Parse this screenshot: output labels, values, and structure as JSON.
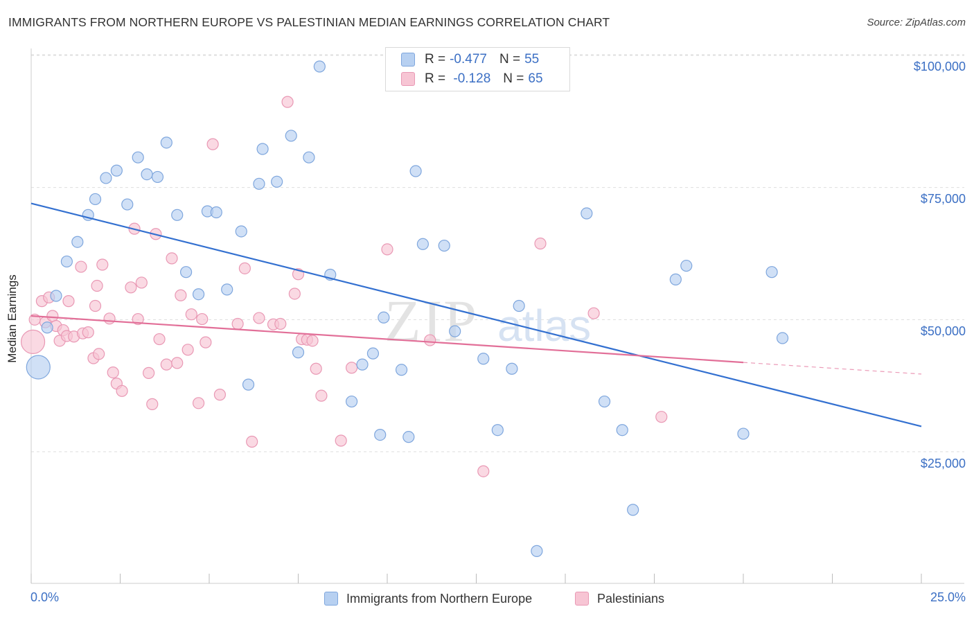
{
  "title": "IMMIGRANTS FROM NORTHERN EUROPE VS PALESTINIAN MEDIAN EARNINGS CORRELATION CHART",
  "source": "Source: ZipAtlas.com",
  "watermark": {
    "zip": "ZIP",
    "atlas": "atlas"
  },
  "stats": [
    {
      "r_label": "R =",
      "r_value": "-0.477",
      "n_label": "N =",
      "n_value": "55"
    },
    {
      "r_label": "R =",
      "r_value": " -0.128",
      "n_label": "N =",
      "n_value": "65"
    }
  ],
  "colors": {
    "blue_fill": "#b7d0f1",
    "blue_stroke": "#7ea6dd",
    "blue_line": "#3370d0",
    "pink_fill": "#f7c5d4",
    "pink_stroke": "#e998b4",
    "pink_line": "#e26f98",
    "tick_text": "#3b6fc4",
    "grid": "#dddddd"
  },
  "chart_data": {
    "type": "scatter",
    "title": "IMMIGRANTS FROM NORTHERN EUROPE VS PALESTINIAN MEDIAN EARNINGS CORRELATION CHART",
    "xlabel": "",
    "ylabel": "Median Earnings",
    "xlim": [
      0,
      25
    ],
    "ylim": [
      0,
      105000
    ],
    "x_tick_labels": [
      "0.0%",
      "25.0%"
    ],
    "y_ticks": [
      25000,
      50000,
      75000,
      100000
    ],
    "y_tick_labels": [
      "$25,000",
      "$50,000",
      "$75,000",
      "$100,000"
    ],
    "grid": true,
    "legend_position": "bottom",
    "series": [
      {
        "name": "Immigrants from Northern Europe",
        "color": "blue",
        "trend": {
          "x": [
            0,
            25
          ],
          "y": [
            72000,
            29800
          ]
        },
        "points": [
          [
            0.2,
            41000,
            "big"
          ],
          [
            0.45,
            48500
          ],
          [
            0.7,
            54500
          ],
          [
            1.0,
            61000
          ],
          [
            1.3,
            64700
          ],
          [
            1.6,
            69800
          ],
          [
            1.8,
            72800
          ],
          [
            2.1,
            76800
          ],
          [
            2.4,
            78200
          ],
          [
            2.7,
            71800
          ],
          [
            3.0,
            80700
          ],
          [
            3.25,
            77500
          ],
          [
            3.55,
            77000
          ],
          [
            3.8,
            83500
          ],
          [
            4.1,
            69800
          ],
          [
            4.35,
            59000
          ],
          [
            4.7,
            54800
          ],
          [
            4.95,
            70500
          ],
          [
            5.2,
            70300
          ],
          [
            5.5,
            55700
          ],
          [
            5.9,
            66700
          ],
          [
            6.1,
            37700
          ],
          [
            6.4,
            75700
          ],
          [
            6.5,
            82300
          ],
          [
            6.9,
            76100
          ],
          [
            7.3,
            84800
          ],
          [
            7.5,
            43800
          ],
          [
            7.8,
            80700
          ],
          [
            8.1,
            97900
          ],
          [
            8.4,
            58500
          ],
          [
            9.0,
            34500
          ],
          [
            9.3,
            41500
          ],
          [
            9.6,
            43600
          ],
          [
            9.8,
            28200
          ],
          [
            9.9,
            50400
          ],
          [
            10.4,
            40500
          ],
          [
            10.6,
            27800
          ],
          [
            10.8,
            78100
          ],
          [
            11.0,
            64300
          ],
          [
            11.6,
            64000
          ],
          [
            11.9,
            47800
          ],
          [
            12.7,
            42600
          ],
          [
            13.1,
            29100
          ],
          [
            13.5,
            40700
          ],
          [
            13.7,
            52600
          ],
          [
            14.2,
            6200
          ],
          [
            15.6,
            70100
          ],
          [
            16.1,
            34500
          ],
          [
            16.6,
            29100
          ],
          [
            16.9,
            14000
          ],
          [
            18.1,
            57600
          ],
          [
            18.4,
            60200
          ],
          [
            20.0,
            28400
          ],
          [
            20.8,
            59000
          ],
          [
            21.1,
            46500
          ]
        ]
      },
      {
        "name": "Palestinians",
        "color": "pink",
        "trend": {
          "x": [
            0,
            20
          ],
          "y": [
            50700,
            41900
          ]
        },
        "trend_dashed": {
          "x": [
            20,
            25
          ],
          "y": [
            41900,
            39700
          ]
        },
        "points": [
          [
            0.05,
            45800,
            "big"
          ],
          [
            0.1,
            50000
          ],
          [
            0.3,
            53500
          ],
          [
            0.4,
            49500
          ],
          [
            0.5,
            54200
          ],
          [
            0.6,
            50700
          ],
          [
            0.7,
            48800
          ],
          [
            0.8,
            46000
          ],
          [
            0.9,
            48000
          ],
          [
            1.0,
            46900
          ],
          [
            1.05,
            53500
          ],
          [
            1.2,
            46800
          ],
          [
            1.4,
            60000
          ],
          [
            1.45,
            47400
          ],
          [
            1.6,
            47600
          ],
          [
            1.75,
            42700
          ],
          [
            1.8,
            52600
          ],
          [
            1.85,
            56400
          ],
          [
            1.9,
            43500
          ],
          [
            2.0,
            60400
          ],
          [
            2.2,
            50200
          ],
          [
            2.3,
            40000
          ],
          [
            2.4,
            37900
          ],
          [
            2.55,
            36500
          ],
          [
            2.8,
            56100
          ],
          [
            2.9,
            67200
          ],
          [
            3.0,
            50100
          ],
          [
            3.1,
            57000
          ],
          [
            3.3,
            39900
          ],
          [
            3.4,
            34000
          ],
          [
            3.5,
            66200
          ],
          [
            3.6,
            46300
          ],
          [
            3.8,
            41500
          ],
          [
            3.95,
            61600
          ],
          [
            4.1,
            41800
          ],
          [
            4.2,
            54600
          ],
          [
            4.4,
            44300
          ],
          [
            4.5,
            51000
          ],
          [
            4.7,
            34200
          ],
          [
            4.8,
            50100
          ],
          [
            4.9,
            45700
          ],
          [
            5.1,
            83200
          ],
          [
            5.3,
            35800
          ],
          [
            5.8,
            49200
          ],
          [
            6.0,
            59700
          ],
          [
            6.2,
            26900
          ],
          [
            6.4,
            50300
          ],
          [
            6.8,
            49100
          ],
          [
            7.0,
            49200
          ],
          [
            7.2,
            91200
          ],
          [
            7.4,
            54900
          ],
          [
            7.5,
            58600
          ],
          [
            7.6,
            46300
          ],
          [
            7.75,
            46200
          ],
          [
            8.0,
            40700
          ],
          [
            8.15,
            35600
          ],
          [
            8.7,
            27100
          ],
          [
            9.0,
            40900
          ],
          [
            10.0,
            63300
          ],
          [
            11.2,
            46100
          ],
          [
            12.7,
            21300
          ],
          [
            14.3,
            64400
          ],
          [
            15.8,
            51200
          ],
          [
            17.7,
            31600
          ],
          [
            7.9,
            46000
          ]
        ]
      }
    ]
  },
  "legend": [
    {
      "label": "Immigrants from Northern Europe",
      "color": "blue"
    },
    {
      "label": "Palestinians",
      "color": "pink"
    }
  ]
}
